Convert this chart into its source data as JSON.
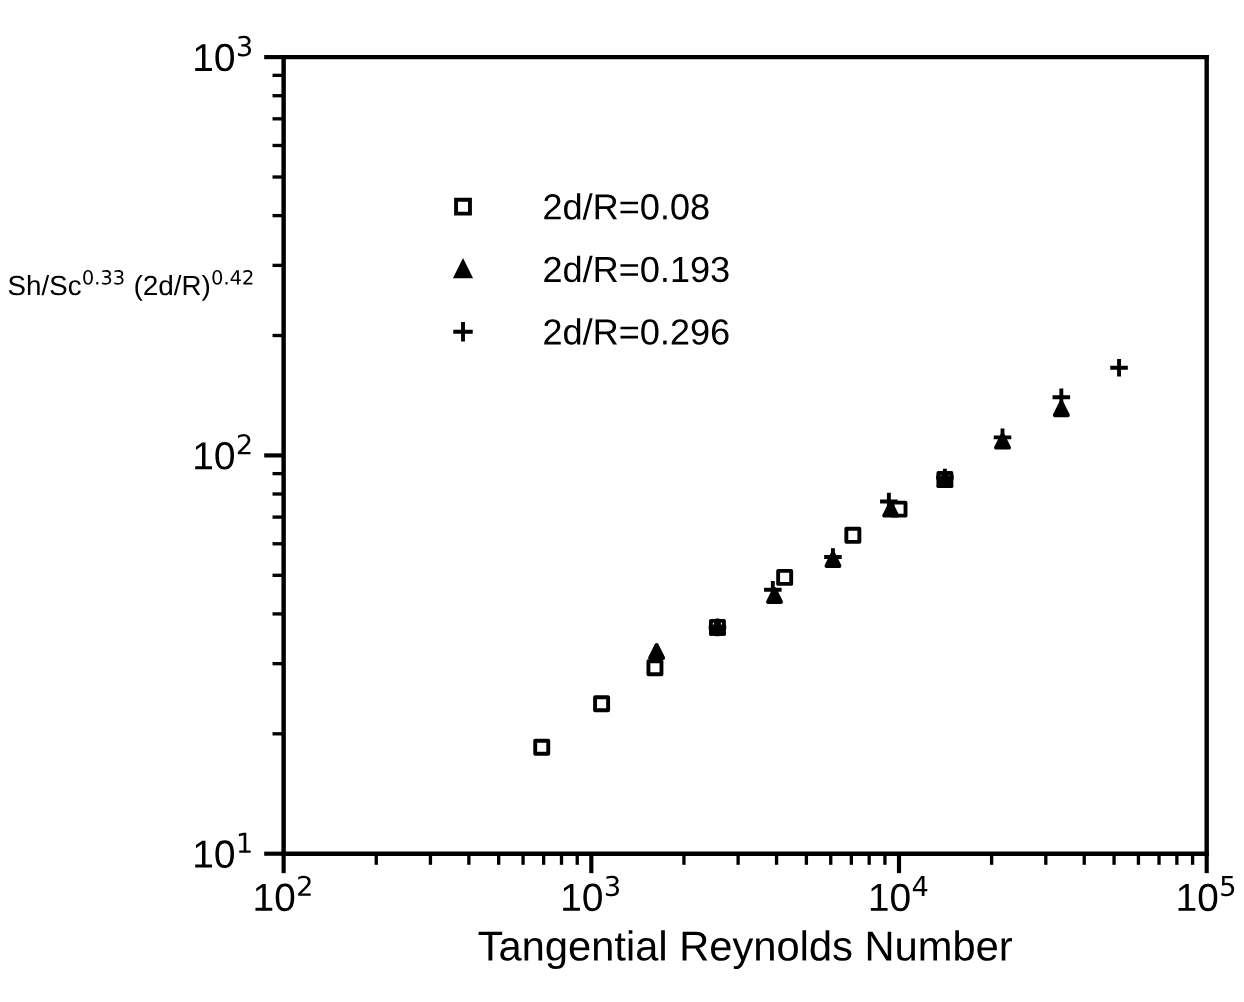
{
  "chart_data": {
    "type": "scatter",
    "xlabel": "Tangential Reynolds Number",
    "ylabel": "Sh/Sc$^{0.33}$ (2d/R)$^{0.42}$",
    "log": "xy",
    "xlim": [
      100,
      100000
    ],
    "ylim": [
      10,
      1000
    ],
    "xticks": [
      {
        "value": 100,
        "label": "10$^{2}$"
      },
      {
        "value": 1000,
        "label": "10$^{3}$"
      },
      {
        "value": 10000,
        "label": "10$^{4}$"
      },
      {
        "value": 100000,
        "label": "10$^{5}$"
      }
    ],
    "yticks": [
      {
        "value": 10,
        "label": "10$^{1}$"
      },
      {
        "value": 100,
        "label": "10$^{2}$"
      },
      {
        "value": 1000,
        "label": "10$^{3}$"
      }
    ],
    "grid": false,
    "legend": "top left",
    "series": [
      {
        "name": "2d/R=0.08",
        "color": "#000000",
        "marker": "square",
        "x": [
          690,
          1080,
          1610,
          2570,
          4250,
          7080,
          10000,
          14100
        ],
        "values": [
          18.5,
          23.8,
          29.3,
          37,
          49.4,
          63,
          73.3,
          87
        ]
      },
      {
        "name": "2d/R=0.193",
        "color": "#000000",
        "marker": "triangle",
        "x": [
          1630,
          2570,
          3940,
          6100,
          9400,
          14100,
          21700,
          33700
        ],
        "values": [
          32.2,
          37,
          44.5,
          54.8,
          73.3,
          87,
          108.6,
          131
        ]
      },
      {
        "name": "2d/R=0.296",
        "color": "#000000",
        "marker": "cross",
        "x": [
          2570,
          3890,
          6100,
          9270,
          14100,
          21700,
          33700,
          51900
        ],
        "values": [
          37,
          46,
          55.6,
          76.6,
          88,
          111,
          140,
          166
        ]
      }
    ]
  }
}
